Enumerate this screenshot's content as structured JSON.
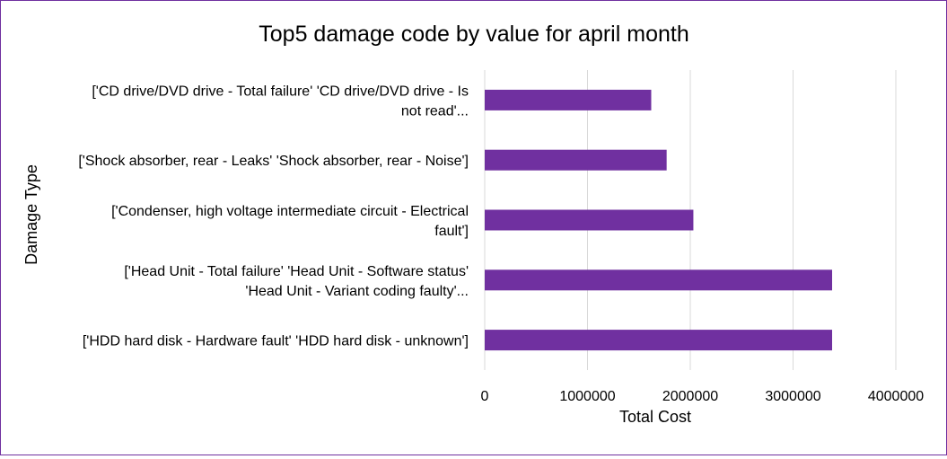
{
  "chart_data": {
    "type": "bar",
    "orientation": "horizontal",
    "title": "Top5 damage code by value for april month",
    "xlabel": "Total Cost",
    "ylabel": "Damage Type",
    "categories": [
      [
        "['CD drive/DVD drive - Total failure' 'CD drive/DVD drive - Is",
        "not read'..."
      ],
      [
        "['Shock absorber, rear - Leaks' 'Shock absorber, rear - Noise']"
      ],
      [
        "['Condenser, high voltage intermediate circuit - Electrical",
        "fault']"
      ],
      [
        "['Head Unit - Total failure' 'Head Unit - Software status'",
        "'Head Unit - Variant coding faulty'..."
      ],
      [
        "['HDD hard disk - Hardware fault' 'HDD hard disk - unknown']"
      ]
    ],
    "values": [
      1620000,
      1770000,
      2030000,
      3380000,
      3380000
    ],
    "xlim": [
      0,
      4000000
    ],
    "xticks": [
      "0",
      "1000000",
      "2000000",
      "3000000",
      "4000000"
    ],
    "grid": true,
    "legend": "none",
    "bar_color": "#7030a0",
    "grid_color": "#d9d9d9",
    "border_color": "#7030a0",
    "text_color": "#000000"
  }
}
